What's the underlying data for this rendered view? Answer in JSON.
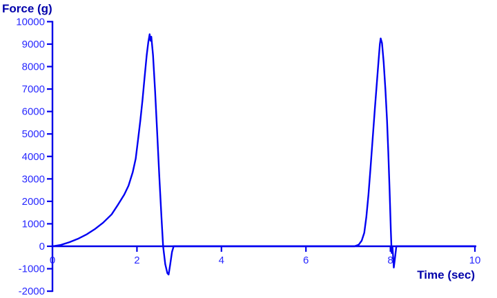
{
  "chart_data": {
    "type": "line",
    "title": "",
    "xlabel": "Time (sec)",
    "ylabel": "Force (g)",
    "xlim": [
      0,
      10
    ],
    "ylim": [
      -2000,
      10000
    ],
    "x_ticks": [
      0,
      2,
      4,
      6,
      8,
      10
    ],
    "y_ticks": [
      -2000,
      -1000,
      0,
      1000,
      2000,
      3000,
      4000,
      5000,
      6000,
      7000,
      8000,
      9000,
      10000
    ],
    "grid": false,
    "legend": "none",
    "colors": {
      "line": "#0000f2",
      "axis": "#0000e8",
      "tick_label": "#2828ff",
      "axis_title": "#0000aa",
      "background": "#ffffff"
    },
    "series": [
      {
        "name": "force",
        "points": [
          [
            0,
            0
          ],
          [
            0.2,
            60
          ],
          [
            0.4,
            180
          ],
          [
            0.6,
            330
          ],
          [
            0.8,
            520
          ],
          [
            1.0,
            760
          ],
          [
            1.2,
            1050
          ],
          [
            1.4,
            1420
          ],
          [
            1.55,
            1850
          ],
          [
            1.7,
            2300
          ],
          [
            1.8,
            2700
          ],
          [
            1.9,
            3300
          ],
          [
            1.97,
            3900
          ],
          [
            2.03,
            4800
          ],
          [
            2.08,
            5600
          ],
          [
            2.13,
            6500
          ],
          [
            2.18,
            7500
          ],
          [
            2.23,
            8500
          ],
          [
            2.27,
            9100
          ],
          [
            2.3,
            9440
          ],
          [
            2.32,
            9150
          ],
          [
            2.34,
            9330
          ],
          [
            2.38,
            8500
          ],
          [
            2.43,
            6900
          ],
          [
            2.48,
            5000
          ],
          [
            2.53,
            3100
          ],
          [
            2.58,
            1300
          ],
          [
            2.62,
            0
          ],
          [
            2.67,
            -800
          ],
          [
            2.72,
            -1200
          ],
          [
            2.75,
            -1260
          ],
          [
            2.79,
            -780
          ],
          [
            2.83,
            -250
          ],
          [
            2.87,
            0
          ],
          [
            3.5,
            0
          ],
          [
            5.0,
            0
          ],
          [
            6.5,
            0
          ],
          [
            7.15,
            0
          ],
          [
            7.25,
            70
          ],
          [
            7.32,
            250
          ],
          [
            7.38,
            600
          ],
          [
            7.43,
            1300
          ],
          [
            7.48,
            2300
          ],
          [
            7.53,
            3500
          ],
          [
            7.58,
            4800
          ],
          [
            7.63,
            6100
          ],
          [
            7.68,
            7300
          ],
          [
            7.72,
            8300
          ],
          [
            7.75,
            9000
          ],
          [
            7.77,
            9255
          ],
          [
            7.8,
            9050
          ],
          [
            7.84,
            8200
          ],
          [
            7.88,
            7000
          ],
          [
            7.92,
            5600
          ],
          [
            7.95,
            4200
          ],
          [
            7.98,
            2500
          ],
          [
            8.01,
            700
          ],
          [
            8.03,
            -300
          ],
          [
            8.05,
            -60
          ],
          [
            8.08,
            -950
          ],
          [
            8.11,
            -500
          ],
          [
            8.14,
            0
          ],
          [
            9.0,
            0
          ],
          [
            10.0,
            0
          ]
        ]
      }
    ]
  }
}
